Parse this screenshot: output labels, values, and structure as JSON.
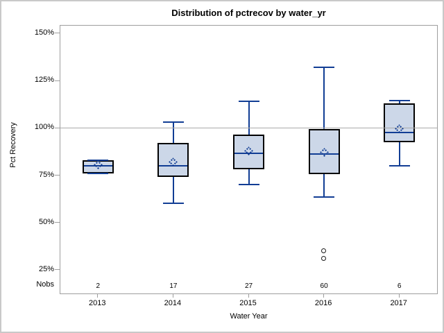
{
  "chart_data": {
    "type": "box",
    "title": "Distribution of pctrecov by water_yr",
    "xlabel": "Water Year",
    "ylabel": "Pct Recovery",
    "categories": [
      "2013",
      "2014",
      "2015",
      "2016",
      "2017"
    ],
    "nobs_label": "Nobs",
    "nobs": [
      "2",
      "17",
      "27",
      "60",
      "6"
    ],
    "y_ticks": [
      {
        "label": "150%",
        "value": 150
      },
      {
        "label": "125%",
        "value": 125
      },
      {
        "label": "100%",
        "value": 100
      },
      {
        "label": "75%",
        "value": 75
      },
      {
        "label": "50%",
        "value": 50
      },
      {
        "label": "25%",
        "value": 25
      }
    ],
    "ylim": [
      12.5,
      154
    ],
    "reference_line": 100,
    "legend": "none",
    "grid": "off",
    "series": [
      {
        "category": "2013",
        "min": 76,
        "q1": 76,
        "median": 80,
        "q3": 83,
        "max": 83,
        "mean": 80.5,
        "outliers": []
      },
      {
        "category": "2014",
        "min": 60,
        "q1": 74,
        "median": 80,
        "q3": 92,
        "max": 103,
        "mean": 82,
        "outliers": []
      },
      {
        "category": "2015",
        "min": 70,
        "q1": 78,
        "median": 86.5,
        "q3": 96.5,
        "max": 114,
        "mean": 88,
        "outliers": []
      },
      {
        "category": "2016",
        "min": 63.5,
        "q1": 75.5,
        "median": 86,
        "q3": 99.5,
        "max": 132,
        "mean": 87,
        "outliers": [
          35,
          31
        ]
      },
      {
        "category": "2017",
        "min": 80,
        "q1": 92.5,
        "median": 97.5,
        "q3": 113,
        "max": 114.5,
        "mean": 99.5,
        "outliers": []
      }
    ],
    "colors": {
      "box_fill": "#ccd7e8",
      "box_border": "#000000",
      "whisker": "#113d94",
      "refline": "#a9a9a9",
      "frame": "#9e9e9e",
      "outlier": "#1a1a1a",
      "text": "#000000",
      "figure_border": "#c9c9c9"
    }
  }
}
